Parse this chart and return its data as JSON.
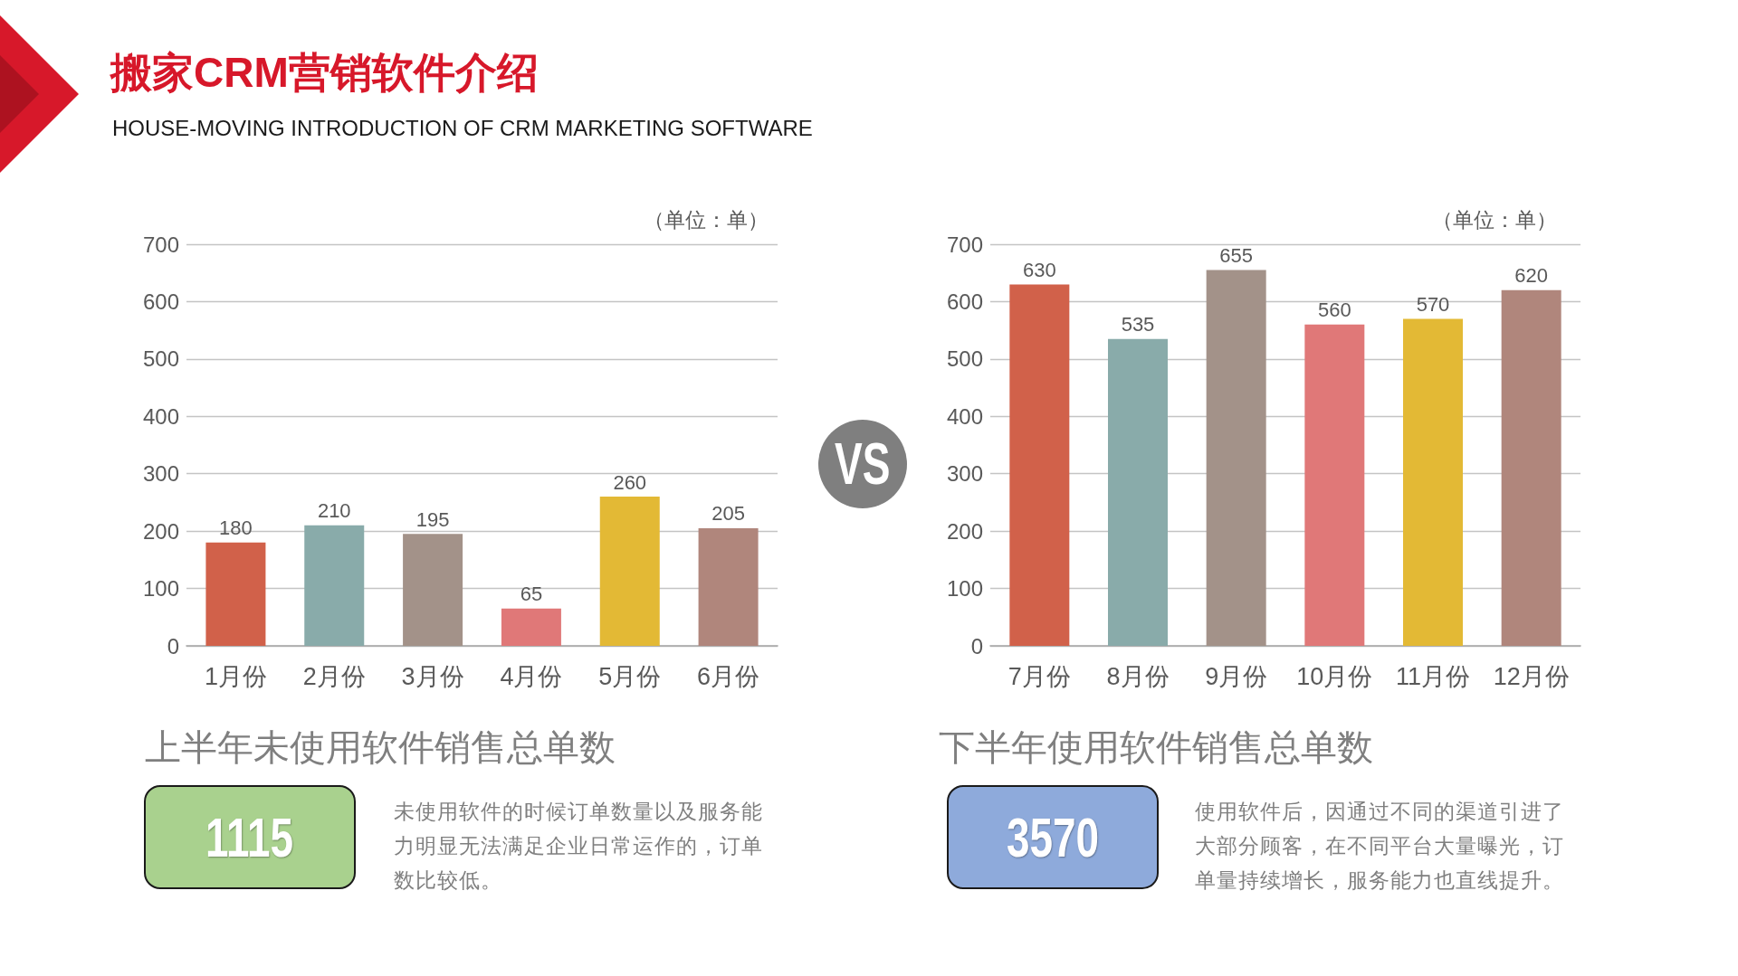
{
  "chart_data": [
    {
      "type": "bar",
      "title": "搬家CRM营销软件介绍",
      "subtitle": "HOUSE-MOVING INTRODUCTION OF CRM MARKETING SOFTWARE",
      "ylabel": "（单位：单）",
      "categories": [
        "1月份",
        "2月份",
        "3月份",
        "4月份",
        "5月份",
        "6月份"
      ],
      "values": [
        180,
        210,
        195,
        65,
        260,
        205
      ],
      "colors": [
        "#d1614a",
        "#89abaa",
        "#a39289",
        "#e07878",
        "#e3b935",
        "#b0867c"
      ],
      "ylim": [
        0,
        700
      ],
      "yticks": [
        0,
        100,
        200,
        300,
        400,
        500,
        600,
        700
      ],
      "grid": "y",
      "data_labels": true,
      "annotations": [
        "上半年未使用软件销售总单数",
        "1115",
        "未使用软件的时候订单数量以及服务能力明显无法满足企业日常运作的，订单数比较低。"
      ]
    },
    {
      "type": "other",
      "annotations": [
        "VS"
      ]
    },
    {
      "type": "bar",
      "ylabel": "（单位：单）",
      "categories": [
        "7月份",
        "8月份",
        "9月份",
        "10月份",
        "11月份",
        "12月份"
      ],
      "values": [
        630,
        535,
        655,
        560,
        570,
        620
      ],
      "colors": [
        "#d1614a",
        "#89abaa",
        "#a39289",
        "#e07878",
        "#e3b935",
        "#b0867c"
      ],
      "ylim": [
        0,
        700
      ],
      "yticks": [
        0,
        100,
        200,
        300,
        400,
        500,
        600,
        700
      ],
      "grid": "y",
      "data_labels": true,
      "annotations": [
        "下半年使用软件销售总单数",
        "3570",
        "使用软件后，因通过不同的渠道引进了大部分顾客，在不同平台大量曝光，订单量持续增长，服务能力也直线提升。"
      ]
    }
  ]
}
